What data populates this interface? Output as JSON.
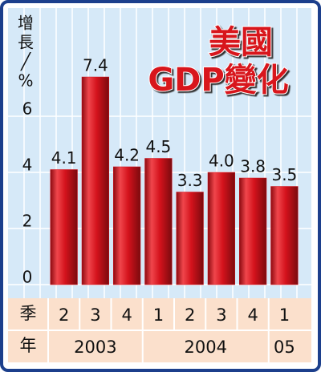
{
  "chart_data": {
    "type": "bar",
    "title": [
      "美國",
      "GDP變化"
    ],
    "y_label": [
      "增",
      "長",
      "╱",
      "%"
    ],
    "categories": [
      "2",
      "3",
      "4",
      "1",
      "2",
      "3",
      "4",
      "1"
    ],
    "category_row_label": "季",
    "group_row_label": "年",
    "groups": [
      {
        "label": "2003",
        "size": 3
      },
      {
        "label": "2004",
        "size": 4
      },
      {
        "label": "05",
        "size": 1
      }
    ],
    "values": [
      4.1,
      7.4,
      4.2,
      4.5,
      3.3,
      4.0,
      3.8,
      3.5
    ],
    "value_labels": [
      "4.1",
      "7.4",
      "4.2",
      "4.5",
      "3.3",
      "4.0",
      "3.8",
      "3.5"
    ],
    "color": "#d4121c",
    "ylim": [
      0,
      9.8
    ],
    "yticks": [
      0,
      2,
      4,
      6
    ],
    "grid": true
  }
}
